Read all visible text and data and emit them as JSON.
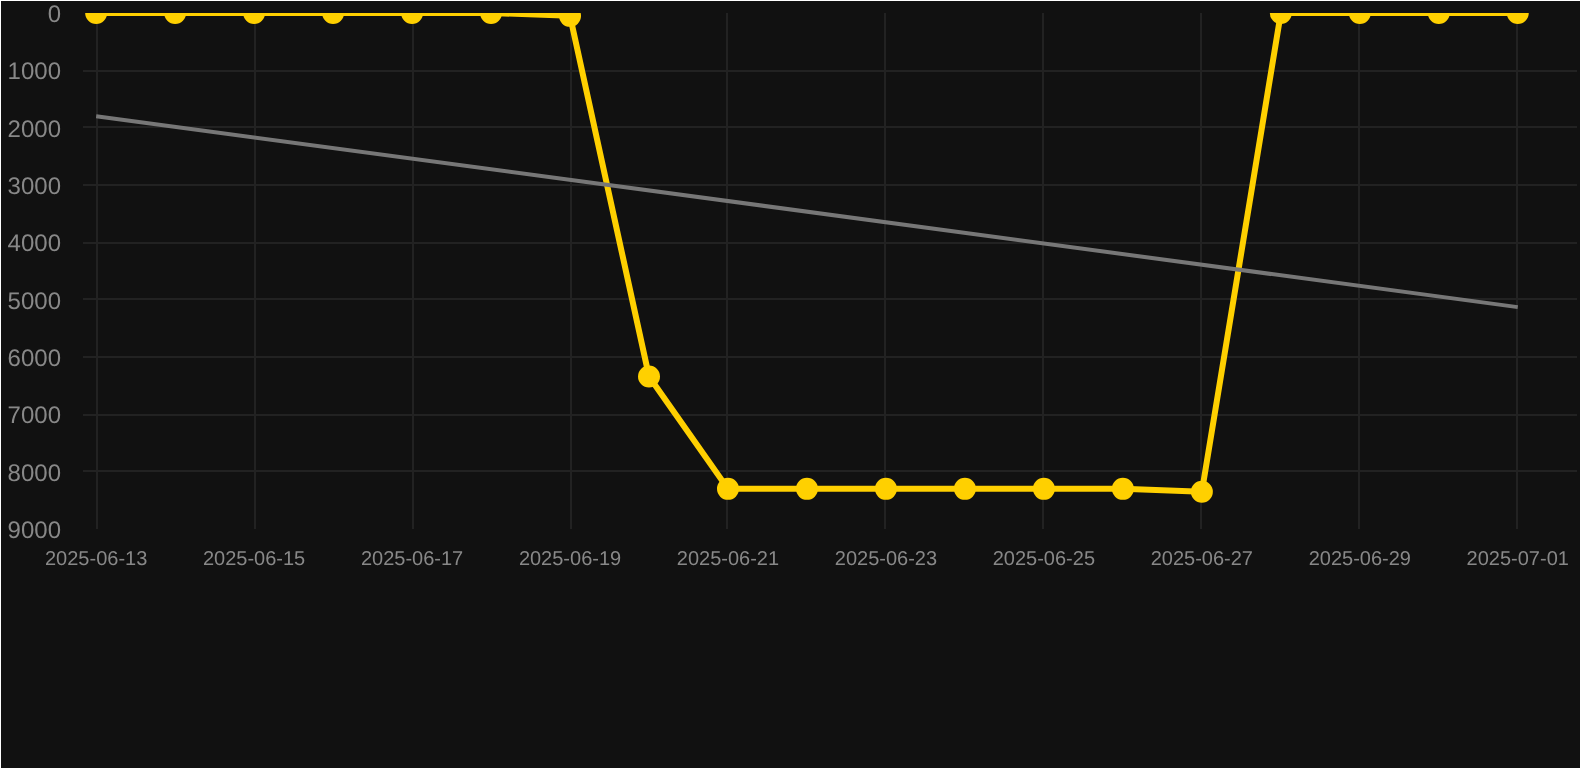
{
  "chart_data": {
    "type": "line",
    "x": [
      "2025-06-13",
      "2025-06-14",
      "2025-06-15",
      "2025-06-16",
      "2025-06-17",
      "2025-06-18",
      "2025-06-19",
      "2025-06-20",
      "2025-06-21",
      "2025-06-22",
      "2025-06-23",
      "2025-06-24",
      "2025-06-25",
      "2025-06-26",
      "2025-06-27",
      "2025-06-28",
      "2025-06-29",
      "2025-06-30",
      "2025-07-01"
    ],
    "series": [
      {
        "color": "#ffd000",
        "marker": "circle",
        "values": [
          0,
          0,
          0,
          0,
          0,
          0,
          50,
          6340,
          8300,
          8300,
          8300,
          8300,
          8300,
          8300,
          8350,
          0,
          0,
          0,
          0
        ]
      },
      {
        "type": "line",
        "color": "#777777",
        "marker": "none",
        "x": [
          "2025-06-13",
          "2025-07-01"
        ],
        "values": [
          1800,
          5130
        ]
      }
    ],
    "xlim": [
      "2025-06-12T20:00",
      "2025-07-01T18:00"
    ],
    "xticks": [
      {
        "value": "2025-06-13",
        "label": "2025-06-13"
      },
      {
        "value": "2025-06-15",
        "label": "2025-06-15"
      },
      {
        "value": "2025-06-17",
        "label": "2025-06-17"
      },
      {
        "value": "2025-06-19",
        "label": "2025-06-19"
      },
      {
        "value": "2025-06-21",
        "label": "2025-06-21"
      },
      {
        "value": "2025-06-23",
        "label": "2025-06-23"
      },
      {
        "value": "2025-06-25",
        "label": "2025-06-25"
      },
      {
        "value": "2025-06-27",
        "label": "2025-06-27"
      },
      {
        "value": "2025-06-29",
        "label": "2025-06-29"
      },
      {
        "value": "2025-07-01",
        "label": "2025-07-01"
      }
    ],
    "ylim": [
      9000,
      0
    ],
    "yticks": [
      0,
      1000,
      2000,
      3000,
      4000,
      5000,
      6000,
      7000,
      8000,
      9000
    ],
    "grid": true
  }
}
